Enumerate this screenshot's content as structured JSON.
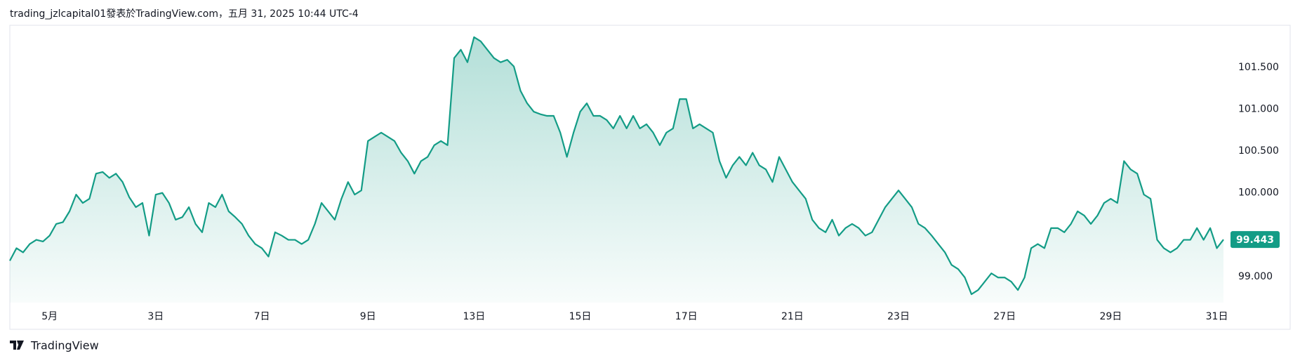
{
  "chart_data": {
    "type": "area",
    "title": "trading_jzlcapital01發表於TradingView.com，五月 31, 2025 10:44 UTC-4",
    "source": "TradingView",
    "color": "#139c86",
    "grid": false,
    "categories": [
      null,
      null,
      null,
      null,
      null,
      null,
      "5月",
      null,
      null,
      null,
      null,
      null,
      null,
      null,
      null,
      null,
      null,
      null,
      null,
      null,
      null,
      null,
      "3日",
      null,
      null,
      null,
      null,
      null,
      null,
      null,
      null,
      null,
      null,
      null,
      null,
      null,
      null,
      null,
      "7日",
      null,
      null,
      null,
      null,
      null,
      null,
      null,
      null,
      null,
      null,
      null,
      null,
      null,
      null,
      null,
      "9日",
      null,
      null,
      null,
      null,
      null,
      null,
      null,
      null,
      null,
      null,
      null,
      null,
      null,
      null,
      null,
      "13日",
      null,
      null,
      null,
      null,
      null,
      null,
      null,
      null,
      null,
      null,
      null,
      null,
      null,
      null,
      null,
      "15日",
      null,
      null,
      null,
      null,
      null,
      null,
      null,
      null,
      null,
      null,
      null,
      null,
      null,
      null,
      null,
      "17日",
      null,
      null,
      null,
      null,
      null,
      null,
      null,
      null,
      null,
      null,
      null,
      null,
      null,
      null,
      null,
      "21日",
      null,
      null,
      null,
      null,
      null,
      null,
      null,
      null,
      null,
      null,
      null,
      null,
      null,
      null,
      null,
      "23日",
      null,
      null,
      null,
      null,
      null,
      null,
      null,
      null,
      null,
      null,
      null,
      null,
      null,
      null,
      null,
      "27日",
      null,
      null,
      null,
      null,
      null,
      null,
      null,
      null,
      null,
      null,
      null,
      null,
      null,
      null,
      null,
      "29日",
      null,
      null,
      null,
      null,
      null,
      null,
      null,
      null,
      null,
      null,
      null,
      null,
      null,
      null,
      null,
      "31日",
      null
    ],
    "values": [
      99.19,
      99.34,
      99.29,
      99.39,
      99.44,
      99.42,
      99.49,
      99.63,
      99.65,
      99.78,
      99.98,
      99.88,
      99.93,
      100.23,
      100.25,
      100.18,
      100.23,
      100.13,
      99.95,
      99.83,
      99.88,
      99.49,
      99.98,
      100.0,
      99.88,
      99.68,
      99.71,
      99.83,
      99.63,
      99.53,
      99.88,
      99.83,
      99.98,
      99.78,
      99.71,
      99.63,
      99.49,
      99.39,
      99.34,
      99.24,
      99.53,
      99.49,
      99.44,
      99.44,
      99.39,
      99.44,
      99.63,
      99.88,
      99.78,
      99.68,
      99.93,
      100.13,
      99.98,
      100.03,
      100.62,
      100.67,
      100.72,
      100.67,
      100.62,
      100.48,
      100.38,
      100.23,
      100.38,
      100.43,
      100.57,
      100.62,
      100.57,
      101.61,
      101.71,
      101.56,
      101.86,
      101.81,
      101.71,
      101.61,
      101.56,
      101.59,
      101.51,
      101.22,
      101.07,
      100.97,
      100.94,
      100.92,
      100.92,
      100.72,
      100.43,
      100.72,
      100.97,
      101.07,
      100.92,
      100.92,
      100.87,
      100.77,
      100.92,
      100.77,
      100.92,
      100.77,
      100.82,
      100.72,
      100.57,
      100.72,
      100.77,
      101.12,
      101.12,
      100.77,
      100.82,
      100.77,
      100.72,
      100.38,
      100.18,
      100.33,
      100.43,
      100.33,
      100.48,
      100.33,
      100.28,
      100.13,
      100.43,
      100.28,
      100.13,
      100.03,
      99.93,
      99.68,
      99.58,
      99.53,
      99.68,
      99.49,
      99.58,
      99.63,
      99.58,
      99.49,
      99.53,
      99.68,
      99.83,
      99.93,
      100.03,
      99.93,
      99.83,
      99.63,
      99.58,
      99.49,
      99.39,
      99.29,
      99.14,
      99.09,
      98.99,
      98.79,
      98.84,
      98.94,
      99.04,
      98.99,
      98.99,
      98.94,
      98.84,
      98.99,
      99.34,
      99.39,
      99.34,
      99.58,
      99.58,
      99.53,
      99.63,
      99.78,
      99.73,
      99.63,
      99.73,
      99.88,
      99.93,
      99.88,
      100.38,
      100.28,
      100.23,
      99.98,
      99.93,
      99.44,
      99.34,
      99.29,
      99.34,
      99.44,
      99.44,
      99.58,
      99.44,
      99.58,
      99.34,
      99.443
    ],
    "ylim": [
      98.69,
      102.01
    ],
    "yticks": [
      {
        "value": 99,
        "label": "99.000"
      },
      {
        "value": 100,
        "label": "100.000"
      },
      {
        "value": 100.5,
        "label": "100.500"
      },
      {
        "value": 101,
        "label": "101.000"
      },
      {
        "value": 101.5,
        "label": "101.500"
      }
    ]
  }
}
